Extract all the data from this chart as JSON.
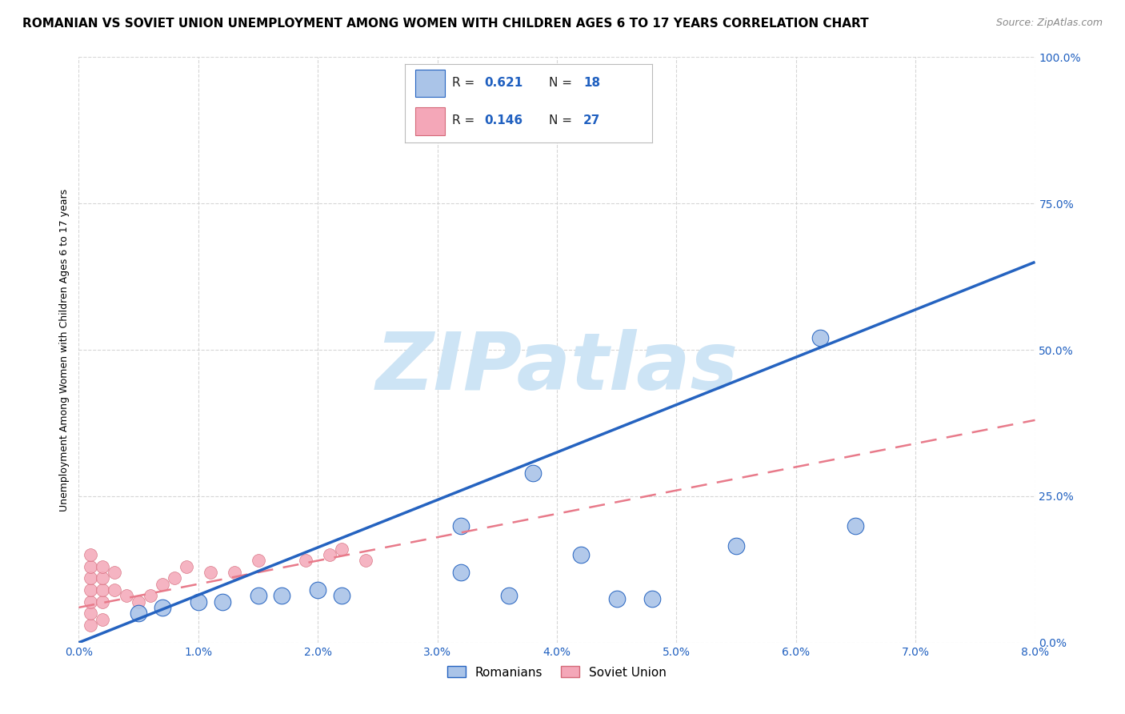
{
  "title": "ROMANIAN VS SOVIET UNION UNEMPLOYMENT AMONG WOMEN WITH CHILDREN AGES 6 TO 17 YEARS CORRELATION CHART",
  "source": "Source: ZipAtlas.com",
  "ylabel": "Unemployment Among Women with Children Ages 6 to 17 years",
  "xlim": [
    0.0,
    0.08
  ],
  "ylim": [
    0.0,
    1.0
  ],
  "xticks": [
    0.0,
    0.01,
    0.02,
    0.03,
    0.04,
    0.05,
    0.06,
    0.07,
    0.08
  ],
  "yticks": [
    0.0,
    0.25,
    0.5,
    0.75,
    1.0
  ],
  "xtick_labels": [
    "0.0%",
    "1.0%",
    "2.0%",
    "3.0%",
    "4.0%",
    "5.0%",
    "6.0%",
    "7.0%",
    "8.0%"
  ],
  "ytick_labels": [
    "0.0%",
    "25.0%",
    "50.0%",
    "75.0%",
    "100.0%"
  ],
  "background_color": "#ffffff",
  "grid_color": "#cccccc",
  "romanian_color": "#aac4e8",
  "soviet_color": "#f4a7b8",
  "romanian_line_color": "#2563c0",
  "soviet_line_color": "#e87a8a",
  "romanian_R": 0.621,
  "romanian_N": 18,
  "soviet_R": 0.146,
  "soviet_N": 27,
  "legend_label_romanian": "Romanians",
  "legend_label_soviet": "Soviet Union",
  "romanian_x": [
    0.005,
    0.007,
    0.01,
    0.012,
    0.015,
    0.017,
    0.02,
    0.022,
    0.032,
    0.036,
    0.038,
    0.042,
    0.045,
    0.048,
    0.055,
    0.062,
    0.032,
    0.065
  ],
  "romanian_y": [
    0.05,
    0.06,
    0.07,
    0.07,
    0.08,
    0.08,
    0.09,
    0.08,
    0.12,
    0.08,
    0.29,
    0.15,
    0.075,
    0.075,
    0.165,
    0.52,
    0.2,
    0.2
  ],
  "soviet_x": [
    0.001,
    0.001,
    0.001,
    0.001,
    0.001,
    0.001,
    0.001,
    0.002,
    0.002,
    0.002,
    0.002,
    0.002,
    0.003,
    0.003,
    0.004,
    0.005,
    0.006,
    0.007,
    0.008,
    0.009,
    0.011,
    0.013,
    0.015,
    0.019,
    0.021,
    0.022,
    0.024
  ],
  "soviet_y": [
    0.03,
    0.05,
    0.07,
    0.09,
    0.11,
    0.13,
    0.15,
    0.04,
    0.07,
    0.09,
    0.11,
    0.13,
    0.09,
    0.12,
    0.08,
    0.07,
    0.08,
    0.1,
    0.11,
    0.13,
    0.12,
    0.12,
    0.14,
    0.14,
    0.15,
    0.16,
    0.14
  ],
  "romanian_line_x": [
    0.0,
    0.08
  ],
  "romanian_line_y": [
    0.0,
    0.65
  ],
  "soviet_line_x": [
    0.0,
    0.08
  ],
  "soviet_line_y": [
    0.06,
    0.38
  ],
  "title_fontsize": 11,
  "source_fontsize": 9,
  "axis_label_fontsize": 9,
  "tick_fontsize": 10,
  "legend_fontsize": 11,
  "watermark_text": "ZIPatlas",
  "watermark_color": "#cde4f5",
  "watermark_fontsize": 72
}
